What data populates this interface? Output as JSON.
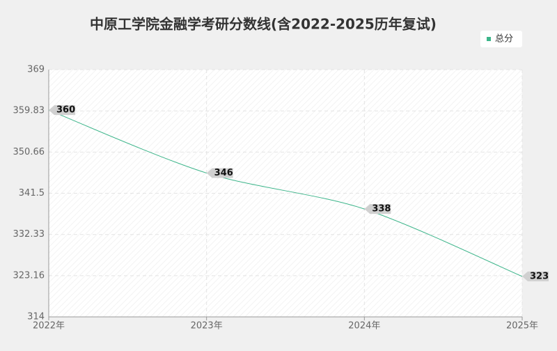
{
  "chart_data": {
    "type": "line",
    "title": "中原工学院金融学考研分数线(含2022-2025历年复试)",
    "categories": [
      "2022年",
      "2023年",
      "2024年",
      "2025年"
    ],
    "series": [
      {
        "name": "总分",
        "color": "#3cb58a",
        "values": [
          360,
          346,
          338,
          323
        ]
      }
    ],
    "ylim": [
      314,
      369
    ],
    "yticks": [
      314,
      323.16,
      332.33,
      341.5,
      350.66,
      359.83,
      369
    ],
    "grid": true,
    "legend": "top-right"
  }
}
